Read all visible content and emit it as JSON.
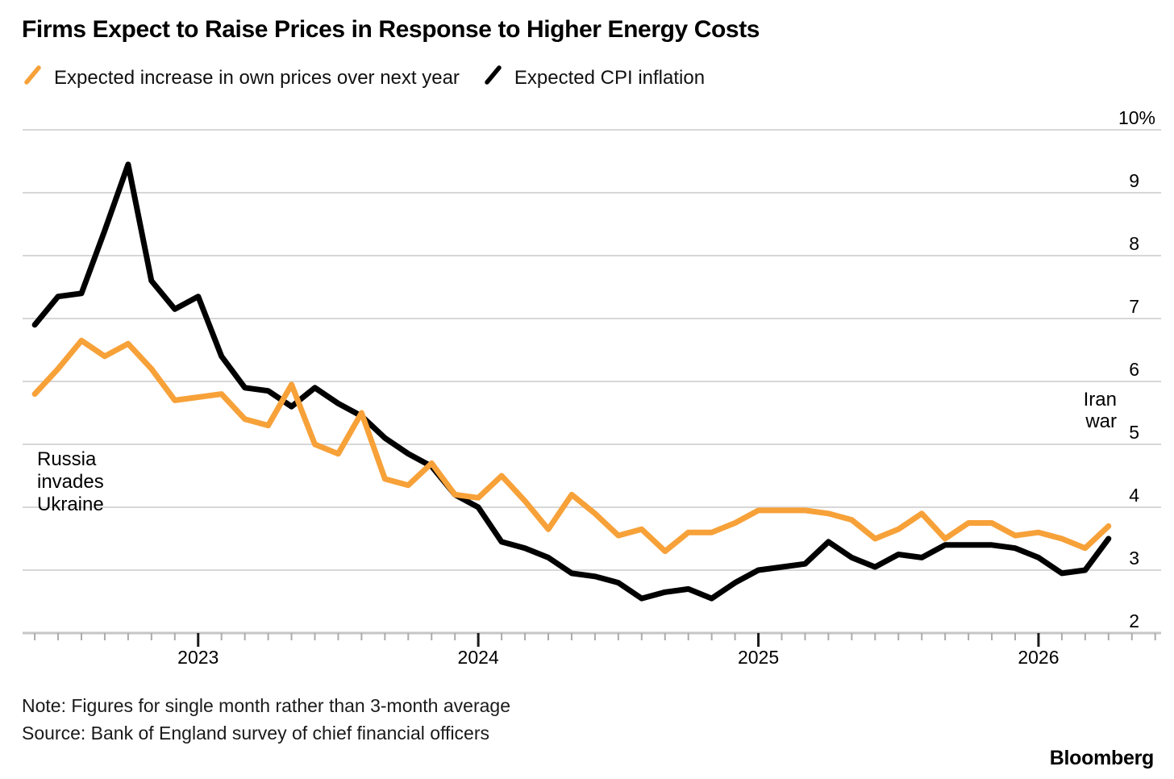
{
  "title": "Firms Expect to Raise Prices in Response to Higher Energy Costs",
  "legend": {
    "items": [
      {
        "label": "Expected increase in own prices over next year",
        "color": "#F7A139",
        "marker": "slash-icon"
      },
      {
        "label": "Expected CPI inflation",
        "color": "#000000",
        "marker": "slash-icon"
      }
    ]
  },
  "annotations": {
    "russia": "Russia\ninvades\nUkraine",
    "iran": "Iran\nwar"
  },
  "footer": {
    "note": "Note: Figures for single month rather than 3-month average",
    "source": "Source: Bank of England survey of chief financial officers",
    "credit": "Bloomberg"
  },
  "colors": {
    "own_prices": "#F7A139",
    "cpi": "#000000",
    "gridline": "#D7D7D7",
    "axis_line": "#C6C6C6",
    "month_tick": "#ABABAB",
    "year_tick": "#1a1a1a"
  },
  "chart_data": {
    "type": "line",
    "title": "Firms Expect to Raise Prices in Response to Higher Energy Costs",
    "unit": "%",
    "ylim": [
      2,
      10
    ],
    "grid": "horizontal",
    "legend_position": "top",
    "y_ticks": [
      10,
      9,
      8,
      7,
      6,
      5,
      4,
      3,
      2
    ],
    "y_tick_labels": [
      "10%",
      "9",
      "8",
      "7",
      "6",
      "5",
      "4",
      "3",
      "2"
    ],
    "x_year_labels": [
      "2023",
      "2024",
      "2025",
      "2026"
    ],
    "x_year_tick_indices": [
      7,
      19,
      31,
      43
    ],
    "x": [
      "Jun 2022",
      "Jul 2022",
      "Aug 2022",
      "Sep 2022",
      "Oct 2022",
      "Nov 2022",
      "Dec 2022",
      "Jan 2023",
      "Feb 2023",
      "Mar 2023",
      "Apr 2023",
      "May 2023",
      "Jun 2023",
      "Jul 2023",
      "Aug 2023",
      "Sep 2023",
      "Oct 2023",
      "Nov 2023",
      "Dec 2023",
      "Jan 2024",
      "Feb 2024",
      "Mar 2024",
      "Apr 2024",
      "May 2024",
      "Jun 2024",
      "Jul 2024",
      "Aug 2024",
      "Sep 2024",
      "Oct 2024",
      "Nov 2024",
      "Dec 2024",
      "Jan 2025",
      "Feb 2025",
      "Mar 2025",
      "Apr 2025",
      "May 2025",
      "Jun 2025",
      "Jul 2025",
      "Aug 2025",
      "Sep 2025",
      "Oct 2025",
      "Nov 2025",
      "Dec 2025",
      "Jan 2026",
      "Feb 2026",
      "Mar 2026",
      "Apr 2026"
    ],
    "series": [
      {
        "name": "Expected increase in own prices over next year",
        "color": "#F7A139",
        "values": [
          5.8,
          6.2,
          6.65,
          6.4,
          6.6,
          6.2,
          5.7,
          5.75,
          5.8,
          5.4,
          5.3,
          5.95,
          5.0,
          4.85,
          5.5,
          4.45,
          4.35,
          4.7,
          4.2,
          4.15,
          4.5,
          4.1,
          3.65,
          4.2,
          3.9,
          3.55,
          3.65,
          3.3,
          3.6,
          3.6,
          3.75,
          3.95,
          3.95,
          3.95,
          3.9,
          3.8,
          3.5,
          3.65,
          3.9,
          3.5,
          3.75,
          3.75,
          3.55,
          3.6,
          3.5,
          3.35,
          3.7
        ]
      },
      {
        "name": "Expected CPI inflation",
        "color": "#000000",
        "values": [
          6.9,
          7.35,
          7.4,
          8.4,
          9.45,
          7.6,
          7.15,
          7.35,
          6.4,
          5.9,
          5.85,
          5.6,
          5.9,
          5.65,
          5.45,
          5.1,
          4.85,
          4.65,
          4.2,
          4.0,
          3.45,
          3.35,
          3.2,
          2.95,
          2.9,
          2.8,
          2.55,
          2.65,
          2.7,
          2.55,
          2.8,
          3.0,
          3.05,
          3.1,
          3.45,
          3.2,
          3.05,
          3.25,
          3.2,
          3.4,
          3.4,
          3.4,
          3.35,
          3.2,
          2.95,
          3.0,
          3.5
        ]
      }
    ]
  }
}
